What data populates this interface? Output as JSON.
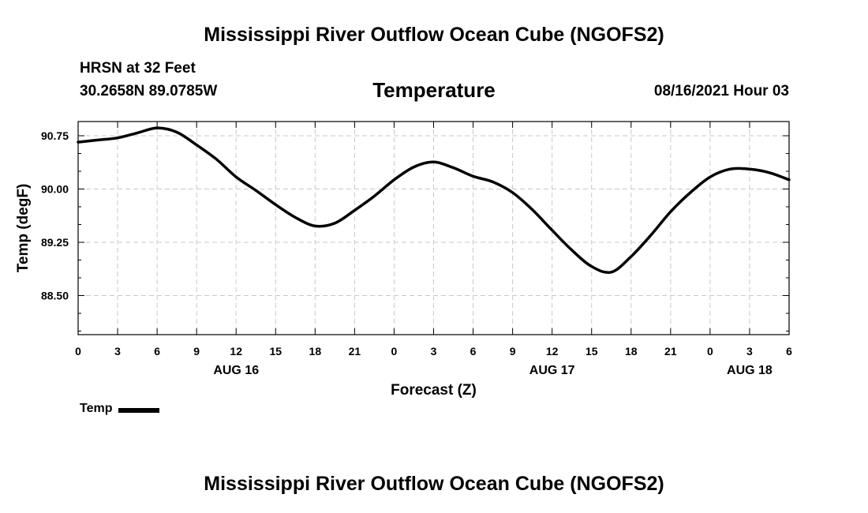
{
  "header": {
    "title": "Mississippi River Outflow Ocean Cube (NGOFS2)",
    "station": "HRSN at 32 Feet",
    "coordinates": "30.2658N  89.0785W",
    "chart_title": "Temperature",
    "datetime": "08/16/2021 Hour 03"
  },
  "footer": {
    "title": "Mississippi River Outflow Ocean Cube (NGOFS2)"
  },
  "legend": {
    "label": "Temp"
  },
  "chart_data": {
    "type": "line",
    "title": "Temperature",
    "xlabel": "Forecast (Z)",
    "ylabel": "Temp (degF)",
    "xlim": [
      0,
      54
    ],
    "ylim": [
      87.95,
      90.95
    ],
    "yticks": [
      88.5,
      89.25,
      90.0,
      90.75
    ],
    "ytick_labels": [
      "88.50",
      "89.25",
      "90.00",
      "90.75"
    ],
    "xticks": [
      0,
      3,
      6,
      9,
      12,
      15,
      18,
      21,
      24,
      27,
      30,
      33,
      36,
      39,
      42,
      45,
      48,
      51,
      54
    ],
    "xtick_labels": [
      "0",
      "3",
      "6",
      "9",
      "12",
      "15",
      "18",
      "21",
      "0",
      "3",
      "6",
      "9",
      "12",
      "15",
      "18",
      "21",
      "0",
      "3",
      "6"
    ],
    "date_labels": [
      {
        "x": 12,
        "label": "AUG 16"
      },
      {
        "x": 36,
        "label": "AUG 17"
      },
      {
        "x": 51,
        "label": "AUG 18"
      }
    ],
    "grid": true,
    "series": [
      {
        "name": "Temp",
        "color": "#000000",
        "x": [
          0,
          1.5,
          3,
          4.5,
          6,
          7.5,
          9,
          10.5,
          12,
          13.5,
          15,
          16.5,
          18,
          19.5,
          21,
          22.5,
          24,
          25.5,
          27,
          28.5,
          30,
          31.5,
          33,
          34.5,
          36,
          37.5,
          39,
          40.5,
          42,
          43.5,
          45,
          46.5,
          48,
          49.5,
          51,
          52.5,
          54
        ],
        "values": [
          90.66,
          90.69,
          90.72,
          90.79,
          90.86,
          90.8,
          90.62,
          90.42,
          90.17,
          89.98,
          89.78,
          89.6,
          89.48,
          89.52,
          89.7,
          89.9,
          90.13,
          90.31,
          90.38,
          90.3,
          90.18,
          90.1,
          89.95,
          89.71,
          89.42,
          89.14,
          88.91,
          88.83,
          89.05,
          89.35,
          89.68,
          89.95,
          90.17,
          90.28,
          90.28,
          90.23,
          90.13
        ]
      }
    ]
  }
}
